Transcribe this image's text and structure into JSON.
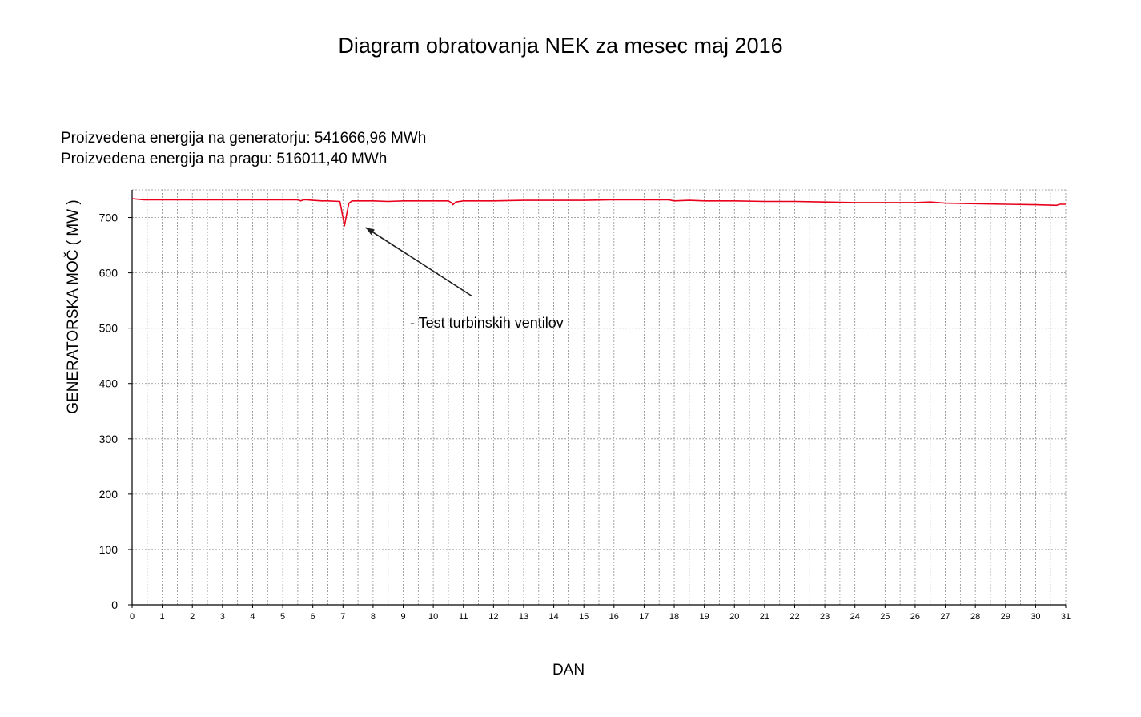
{
  "chart_data": {
    "type": "line",
    "title": "Diagram obratovanja NEK za mesec maj 2016",
    "info": [
      "Proizvedena energija na generatorju:  541666,96 MWh",
      "Proizvedena energija na pragu: 516011,40 MWh"
    ],
    "xlabel": "DAN",
    "ylabel": "GENERATORSKA MOČ ( MW )",
    "xlim": [
      0,
      31
    ],
    "ylim": [
      0,
      750
    ],
    "xticks": [
      0,
      1,
      2,
      3,
      4,
      5,
      6,
      7,
      8,
      9,
      10,
      11,
      12,
      13,
      14,
      15,
      16,
      17,
      18,
      19,
      20,
      21,
      22,
      23,
      24,
      25,
      26,
      27,
      28,
      29,
      30,
      31
    ],
    "yticks": [
      0,
      100,
      200,
      300,
      400,
      500,
      600,
      700
    ],
    "x_minor_step": 0.5,
    "grid": true,
    "series": [
      {
        "color": "#e8001c",
        "x": [
          0,
          0.4,
          1,
          2,
          3,
          4,
          5,
          5.5,
          5.6,
          5.7,
          5.8,
          6,
          6.3,
          6.5,
          6.9,
          7.0,
          7.05,
          7.1,
          7.2,
          7.3,
          7.5,
          8,
          8.5,
          9,
          10,
          10.5,
          10.6,
          10.65,
          10.75,
          11,
          12,
          13,
          14,
          15,
          16,
          17,
          17.8,
          18,
          18.5,
          19,
          20,
          21,
          22,
          23,
          24,
          25,
          26,
          26.5,
          27,
          28,
          29,
          30,
          30.7,
          30.8,
          31
        ],
        "y": [
          734,
          732,
          732,
          732,
          732,
          732,
          732,
          732,
          730,
          732,
          732,
          731,
          730,
          730,
          729,
          700,
          685,
          700,
          726,
          730,
          730,
          730,
          729,
          730,
          730,
          730,
          727,
          723,
          728,
          730,
          730,
          731,
          731,
          731,
          732,
          732,
          732,
          730,
          731,
          730,
          730,
          729,
          729,
          728,
          727,
          727,
          727,
          728,
          726,
          725,
          724,
          723,
          722,
          724,
          724
        ]
      }
    ],
    "annotations": [
      {
        "text": "- Test turbinskih ventilov",
        "arrow_to": {
          "x": 7.75,
          "y": 685
        }
      }
    ],
    "colors": {
      "series": "#e8001c",
      "grid": "#8a8a8a",
      "axis": "#000000",
      "arrow": "#202020"
    }
  }
}
